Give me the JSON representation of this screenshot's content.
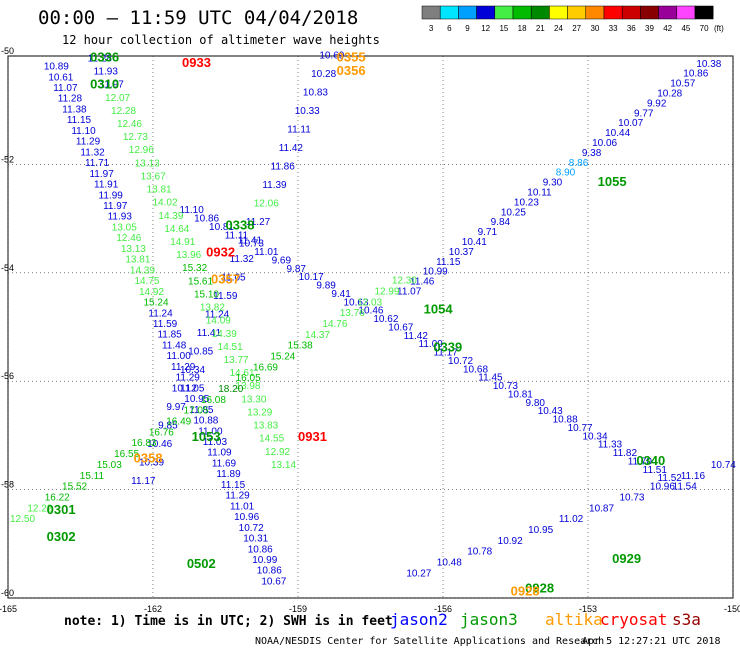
{
  "header": {
    "title": "00:00 – 11:59 UTC 04/04/2018",
    "subtitle": "12 hour collection of altimeter wave heights"
  },
  "legend": {
    "unit": "(ft)",
    "bins": [
      {
        "label": "3",
        "color": "#7f7f7f"
      },
      {
        "label": "6",
        "color": "#00e5ff"
      },
      {
        "label": "9",
        "color": "#00a0ff"
      },
      {
        "label": "12",
        "color": "#0000d8"
      },
      {
        "label": "15",
        "color": "#44ee44"
      },
      {
        "label": "18",
        "color": "#00bb00"
      },
      {
        "label": "21",
        "color": "#008800"
      },
      {
        "label": "24",
        "color": "#ffff00"
      },
      {
        "label": "27",
        "color": "#ffcc00"
      },
      {
        "label": "30",
        "color": "#ff8800"
      },
      {
        "label": "33",
        "color": "#ff0000"
      },
      {
        "label": "36",
        "color": "#cc0000"
      },
      {
        "label": "39",
        "color": "#880000"
      },
      {
        "label": "42",
        "color": "#990099"
      },
      {
        "label": "45",
        "color": "#ff44ff"
      },
      {
        "label": "70",
        "color": "#000000"
      }
    ]
  },
  "footer": {
    "note": "note: 1) Time is in UTC; 2) SWH is in feet",
    "credit": "NOAA/NESDIS Center for Satellite Applications and Research",
    "timestamp": "Apr  5 12:27:21 UTC 2018",
    "satellites": [
      {
        "name": "jason2",
        "color": "#0000ff"
      },
      {
        "name": "jason3",
        "color": "#009900"
      },
      {
        "name": "altika",
        "color": "#ff9900"
      },
      {
        "name": "cryosat",
        "color": "#ff0000"
      },
      {
        "name": "s3a",
        "color": "#990000"
      }
    ]
  },
  "chart_data": {
    "type": "scatter",
    "title": "00:00 – 11:59 UTC 04/04/2018",
    "subtitle": "12 hour collection of altimeter wave heights",
    "xlabel": "",
    "ylabel": "",
    "xlim": [
      -165,
      -150
    ],
    "ylim": [
      -60,
      -50
    ],
    "xticks": [
      "-165",
      "-162",
      "-159",
      "-156",
      "-153",
      "-150"
    ],
    "yticks": [
      "-50",
      "-52",
      "-54",
      "-56",
      "-58",
      "-60"
    ],
    "grid": "dotted",
    "tracks": [
      {
        "name": "jason2-track-0933",
        "start": [
          -164.0,
          -50.25
        ],
        "end": [
          -159.5,
          -59.75
        ],
        "values": [
          "10.89",
          "10.61",
          "11.07",
          "11.28",
          "11.38",
          "11.15",
          "11.10",
          "11.29",
          "11.32",
          "11.71",
          "11.97",
          "11.91",
          "11.99",
          "11.97",
          "11.93",
          "13.05",
          "12.46",
          "13.13",
          "13.81",
          "14.39",
          "14.75",
          "14.92",
          "15.24",
          "11.24",
          "11.59",
          "11.85",
          "11.48",
          "11.00",
          "11.29",
          "11.29",
          "11.05",
          "10.95",
          "11.85",
          "10.88",
          "11.00",
          "11.03",
          "11.09",
          "11.69",
          "11.89",
          "11.15",
          "11.29",
          "11.01",
          "10.96",
          "10.72",
          "10.31",
          "10.86",
          "10.99",
          "10.86",
          "10.67"
        ]
      },
      {
        "name": "jason2-track-0355",
        "start": [
          -158.3,
          -50.05
        ],
        "end": [
          -162.2,
          -57.9
        ],
        "values": [
          "10.69",
          "10.28",
          "10.83",
          "10.33",
          "11.11",
          "11.42",
          "11.86",
          "11.39",
          "12.06",
          "11.27",
          "11.41",
          "11.32",
          "11.05",
          "11.59",
          "11.24",
          "11.41",
          "10.85",
          "10.34",
          "10.12",
          "9.97",
          "9.85",
          "10.46",
          "10.39",
          "11.17"
        ]
      },
      {
        "name": "jason2-track-0338",
        "start": [
          -161.2,
          -52.9
        ],
        "end": [
          -151.0,
          -58.0
        ],
        "values": [
          "11.10",
          "10.86",
          "10.81",
          "11.11",
          "10.73",
          "11.01",
          "9.69",
          "9.87",
          "10.17",
          "9.89",
          "9.41",
          "10.63",
          "10.46",
          "10.62",
          "10.67",
          "11.42",
          "11.09",
          "11.17",
          "10.72",
          "10.68",
          "11.45",
          "10.73",
          "10.81",
          "9.80",
          "10.43",
          "10.88",
          "10.77",
          "10.34",
          "11.33",
          "11.82",
          "11.70",
          "11.51",
          "11.52",
          "11.54"
        ]
      },
      {
        "name": "jason2-track-1055",
        "start": [
          -156.7,
          -54.4
        ],
        "end": [
          -150.5,
          -50.2
        ],
        "values": [
          "11.07",
          "11.46",
          "10.99",
          "11.15",
          "10.37",
          "10.41",
          "9.71",
          "9.84",
          "10.25",
          "10.23",
          "10.11",
          "9.30",
          "8.90",
          "8.86",
          "9.38",
          "10.06",
          "10.44",
          "10.07",
          "9.77",
          "9.92",
          "10.28",
          "10.57",
          "10.86",
          "10.38"
        ]
      },
      {
        "name": "jason3-track-0336",
        "start": [
          -163.1,
          -50.1
        ],
        "end": [
          -159.3,
          -57.6
        ],
        "values": [
          "11.28",
          "11.93",
          "11.97",
          "12.07",
          "12.28",
          "12.46",
          "12.73",
          "12.96",
          "13.13",
          "13.67",
          "13.81",
          "14.02",
          "14.39",
          "14.64",
          "14.91",
          "13.96",
          "15.32",
          "15.61",
          "15.10",
          "13.82",
          "14.09",
          "14.39",
          "14.51",
          "13.77",
          "14.61",
          "13.98",
          "13.30",
          "13.29",
          "13.83",
          "14.55",
          "12.92",
          "13.14"
        ]
      },
      {
        "name": "jason3-track-0339",
        "start": [
          -164.7,
          -58.6
        ],
        "end": [
          -156.8,
          -54.2
        ],
        "values": [
          "12.50",
          "12.22",
          "16.22",
          "15.52",
          "15.11",
          "15.03",
          "16.55",
          "16.83",
          "16.76",
          "16.49",
          "17.05",
          "16.08",
          "18.20",
          "16.05",
          "16.69",
          "15.24",
          "15.38",
          "14.37",
          "14.76",
          "13.76",
          "12.03",
          "12.99",
          "12.30"
        ]
      },
      {
        "name": "s3a-track-0929",
        "start": [
          -156.5,
          -59.6
        ],
        "end": [
          -150.2,
          -57.6
        ],
        "values": [
          "10.27",
          "10.48",
          "10.78",
          "10.92",
          "10.95",
          "11.02",
          "10.87",
          "10.73",
          "10.96",
          "11.16",
          "10.74"
        ]
      }
    ],
    "time_labels": [
      {
        "text": "0336",
        "sat": "jason3",
        "lon": -163.3,
        "lat": -50.1
      },
      {
        "text": "0933",
        "sat": "cryosat",
        "lon": -161.4,
        "lat": -50.2
      },
      {
        "text": "0355",
        "sat": "altika",
        "lon": -158.2,
        "lat": -50.1
      },
      {
        "text": "0356",
        "sat": "altika",
        "lon": -158.2,
        "lat": -50.35
      },
      {
        "text": "0310",
        "sat": "jason3",
        "lon": -163.3,
        "lat": -50.6
      },
      {
        "text": "1055",
        "sat": "jason3",
        "lon": -152.8,
        "lat": -52.4
      },
      {
        "text": "0338",
        "sat": "jason3",
        "lon": -160.5,
        "lat": -53.2
      },
      {
        "text": "0932",
        "sat": "cryosat",
        "lon": -160.9,
        "lat": -53.7
      },
      {
        "text": "0357",
        "sat": "altika",
        "lon": -160.8,
        "lat": -54.2
      },
      {
        "text": "1054",
        "sat": "jason3",
        "lon": -156.4,
        "lat": -54.75
      },
      {
        "text": "0339",
        "sat": "jason3",
        "lon": -156.2,
        "lat": -55.45
      },
      {
        "text": "1053",
        "sat": "jason3",
        "lon": -161.2,
        "lat": -57.1
      },
      {
        "text": "0931",
        "sat": "cryosat",
        "lon": -159.0,
        "lat": -57.1
      },
      {
        "text": "0358",
        "sat": "altika",
        "lon": -162.4,
        "lat": -57.5
      },
      {
        "text": "0340",
        "sat": "jason3",
        "lon": -152.0,
        "lat": -57.55
      },
      {
        "text": "0301",
        "sat": "jason3",
        "lon": -164.2,
        "lat": -58.45
      },
      {
        "text": "0302",
        "sat": "jason3",
        "lon": -164.2,
        "lat": -58.95
      },
      {
        "text": "0502",
        "sat": "jason3",
        "lon": -161.3,
        "lat": -59.45
      },
      {
        "text": "0929",
        "sat": "jason3",
        "lon": -152.5,
        "lat": -59.35
      },
      {
        "text": "0928",
        "sat": "jason3",
        "lon": -154.3,
        "lat": -59.9
      },
      {
        "text": "0928",
        "sat": "altika",
        "lon": -154.6,
        "lat": -59.95
      }
    ]
  }
}
